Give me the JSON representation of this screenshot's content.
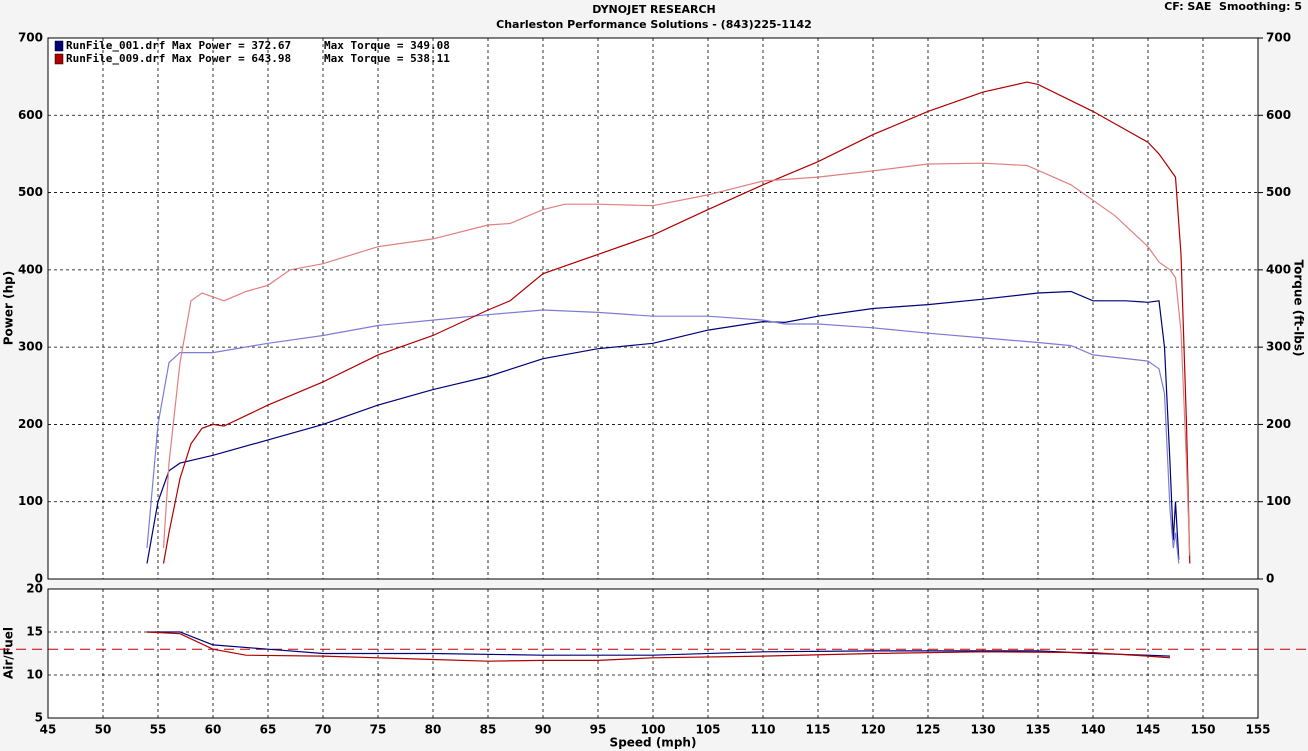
{
  "chart_data": [
    {
      "type": "line",
      "title": "DYNOJET RESEARCH",
      "subtitle": "Charleston Performance Solutions - (843)225-1142",
      "annotation": "CF: SAE  Smoothing: 5",
      "ylabel": "Power (hp)",
      "y2label": "Torque (ft-lbs)",
      "xlim": [
        45,
        155
      ],
      "xticks": [
        45,
        50,
        55,
        60,
        65,
        70,
        75,
        80,
        85,
        90,
        95,
        100,
        105,
        110,
        115,
        120,
        125,
        130,
        135,
        140,
        145,
        150,
        155
      ],
      "ylim": [
        0,
        700
      ],
      "yticks": [
        0,
        100,
        200,
        300,
        400,
        500,
        600,
        700
      ],
      "y2lim": [
        0,
        700
      ],
      "y2ticks": [
        0,
        100,
        200,
        300,
        400,
        500,
        600,
        700
      ],
      "grid": true,
      "series": [
        {
          "name": "RunFile_001.drf Max Power = 372.67",
          "color": "#00007a",
          "x": [
            54,
            55,
            56,
            57,
            60,
            65,
            70,
            75,
            80,
            85,
            90,
            95,
            100,
            105,
            110,
            112,
            115,
            120,
            125,
            130,
            135,
            138,
            140,
            143,
            145,
            146,
            146.5,
            147,
            147.3,
            147.5,
            147.8
          ],
          "values": [
            20,
            100,
            140,
            150,
            160,
            180,
            200,
            225,
            245,
            262,
            285,
            298,
            305,
            322,
            333,
            332,
            340,
            350,
            355,
            362,
            370,
            372,
            360,
            360,
            358,
            360,
            300,
            150,
            50,
            100,
            25
          ]
        },
        {
          "name": "Max Torque = 349.08",
          "color": "#7c7cd8",
          "axis": "y2",
          "x": [
            54,
            55,
            56,
            57,
            60,
            65,
            70,
            75,
            80,
            85,
            90,
            95,
            100,
            105,
            110,
            112,
            115,
            120,
            125,
            130,
            135,
            138,
            140,
            145,
            146,
            146.5,
            147,
            147.3,
            147.5,
            147.8
          ],
          "values": [
            40,
            200,
            280,
            293,
            293,
            305,
            315,
            328,
            335,
            342,
            348,
            345,
            340,
            340,
            335,
            330,
            330,
            325,
            318,
            312,
            306,
            302,
            290,
            282,
            272,
            240,
            90,
            40,
            60,
            20
          ]
        },
        {
          "name": "RunFile_009.drf Max Power = 643.98",
          "color": "#b00000",
          "x": [
            55.5,
            56,
            57,
            58,
            59,
            60,
            61,
            65,
            70,
            75,
            80,
            85,
            87,
            90,
            95,
            100,
            105,
            110,
            115,
            120,
            125,
            130,
            134,
            135,
            140,
            145,
            146,
            147,
            147.5,
            148,
            148.5,
            148.8
          ],
          "values": [
            20,
            60,
            130,
            175,
            195,
            200,
            198,
            225,
            255,
            290,
            315,
            348,
            360,
            395,
            420,
            445,
            478,
            510,
            540,
            575,
            605,
            630,
            643,
            640,
            605,
            565,
            550,
            530,
            520,
            420,
            200,
            20
          ]
        },
        {
          "name": "Max Torque = 538.11",
          "color": "#e08080",
          "axis": "y2",
          "x": [
            55.5,
            56,
            57,
            58,
            59,
            60,
            61,
            63,
            65,
            67,
            70,
            75,
            80,
            85,
            87,
            90,
            92,
            95,
            100,
            105,
            110,
            115,
            120,
            125,
            130,
            134,
            138,
            142,
            145,
            146,
            147,
            147.5,
            148,
            148.5,
            148.8
          ],
          "values": [
            40,
            150,
            280,
            360,
            370,
            365,
            360,
            372,
            380,
            400,
            408,
            430,
            440,
            458,
            460,
            478,
            485,
            485,
            483,
            497,
            515,
            520,
            528,
            537,
            538,
            535,
            510,
            470,
            430,
            410,
            400,
            390,
            320,
            150,
            30
          ]
        }
      ]
    },
    {
      "type": "line",
      "ylabel": "Air/Fuel",
      "xlabel": "Speed (mph)",
      "xlim": [
        45,
        155
      ],
      "xticks": [
        45,
        50,
        55,
        60,
        65,
        70,
        75,
        80,
        85,
        90,
        95,
        100,
        105,
        110,
        115,
        120,
        125,
        130,
        135,
        140,
        145,
        150,
        155
      ],
      "ylim": [
        5,
        20
      ],
      "yticks": [
        5,
        10,
        15,
        20
      ],
      "grid": true,
      "reference_line": 13,
      "reference_color": "#c00000",
      "series": [
        {
          "color": "#00007a",
          "x": [
            54,
            57,
            60,
            65,
            70,
            80,
            90,
            100,
            110,
            120,
            130,
            135,
            140,
            145,
            147
          ],
          "values": [
            15,
            15,
            13.5,
            13,
            12.5,
            12.5,
            12.3,
            12.3,
            12.7,
            12.8,
            12.8,
            12.8,
            12.5,
            12.3,
            12.2
          ]
        },
        {
          "color": "#b00000",
          "x": [
            54,
            57,
            60,
            63,
            70,
            80,
            85,
            90,
            95,
            100,
            110,
            120,
            130,
            140,
            145,
            147
          ],
          "values": [
            15,
            14.8,
            13,
            12.3,
            12.2,
            11.8,
            11.6,
            11.7,
            11.7,
            12,
            12.2,
            12.5,
            12.7,
            12.6,
            12.2,
            12
          ]
        }
      ]
    }
  ]
}
